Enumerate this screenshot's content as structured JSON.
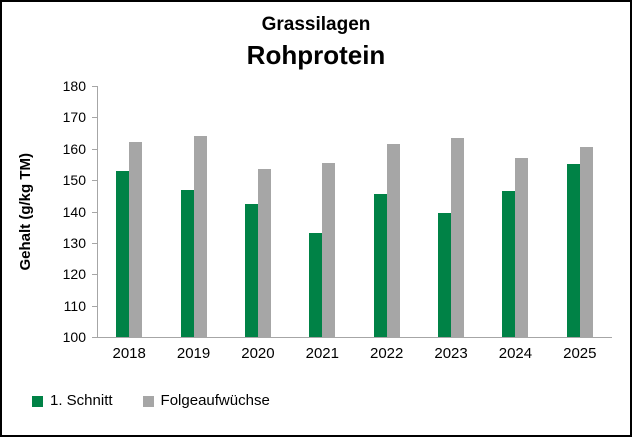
{
  "title": {
    "line1": "Grassilagen",
    "line2": "Rohprotein"
  },
  "colors": {
    "schnitt_green": "#008246",
    "folge_gray": "#A6A6A6",
    "axis_gray": "#A6A6A6",
    "text": "#000000",
    "border": "#000000",
    "background": "#FFFFFF"
  },
  "chart_data": {
    "type": "bar",
    "title": "Grassilagen Rohprotein",
    "categories": [
      "2018",
      "2019",
      "2020",
      "2021",
      "2022",
      "2023",
      "2024",
      "2025"
    ],
    "series": [
      {
        "name": "1. Schnitt",
        "color": "#008246",
        "values": [
          153,
          147,
          142.5,
          133,
          145.5,
          139.5,
          146.5,
          155
        ]
      },
      {
        "name": "Folgeaufwüchse",
        "color": "#A6A6A6",
        "values": [
          162,
          164,
          153.5,
          155.5,
          161.5,
          163.5,
          157,
          160.5
        ]
      }
    ],
    "xlabel": "",
    "ylabel": "Gehalt (g/kg TM)",
    "ylim": [
      100,
      180
    ],
    "yticks": [
      180,
      170,
      160,
      150,
      140,
      130,
      120,
      110,
      100
    ],
    "grid": false,
    "legend_position": "bottom-left"
  }
}
